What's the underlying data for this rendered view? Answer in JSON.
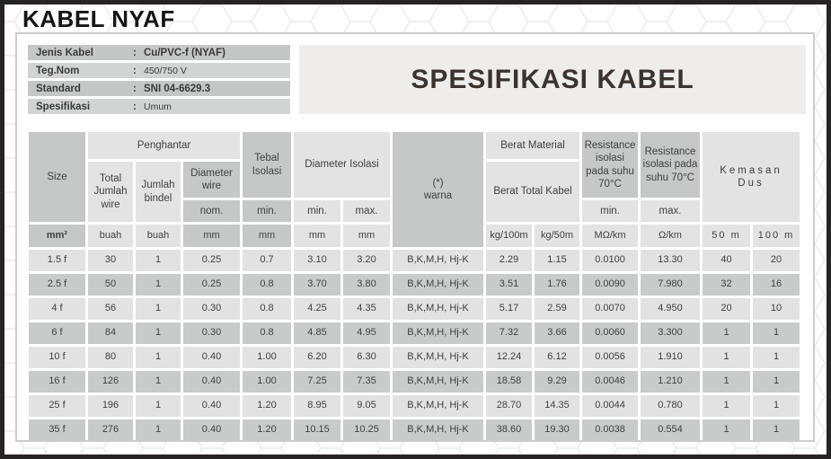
{
  "page_title": "KABEL NYAF",
  "info_panel": {
    "rows": [
      {
        "label": "Jenis Kabel",
        "separator": ":",
        "value": "Cu/PVC-f (NYAF)"
      },
      {
        "label": "Teg.Nom",
        "separator": ":",
        "value": "450/750 V"
      },
      {
        "label": "Standard",
        "separator": ":",
        "value": "SNI 04-6629.3"
      },
      {
        "label": "Spesifikasi",
        "separator": ":",
        "value": "Umum"
      }
    ]
  },
  "banner": {
    "title": "SPESIFIKASI KABEL"
  },
  "spec_table": {
    "headers": {
      "size": "Size",
      "penghantar": "Penghantar",
      "total_jumlah_wire": "Total Jumlah wire",
      "jumlah_bindel": "Jumlah bindel",
      "diameter_wire": "Diameter wire",
      "nom": "nom.",
      "tebal_isolasi": "Tebal Isolasi",
      "tebal_min": "min.",
      "diameter_isolasi": "Diameter Isolasi",
      "diameter_min": "min.",
      "diameter_max": "max.",
      "warna_mark": "(*)",
      "warna": "warna",
      "berat_material": "Berat Material",
      "berat_total_kabel": "Berat Total Kabel",
      "resistance_min_title": "Resistance isolasi pada suhu 70°C",
      "resistance_max_title": "Resistance isolasi pada suhu 70°C",
      "resistance_min": "min.",
      "resistance_max": "max.",
      "kemasan": "Kemasan",
      "dus": "Dus"
    },
    "units": [
      "mm²",
      "buah",
      "buah",
      "mm",
      "mm",
      "mm",
      "mm",
      "kg/100m",
      "kg/50m",
      "MΩ/km",
      "Ω/km",
      "50 m",
      "100 m"
    ],
    "rows": [
      [
        "1.5 f",
        "30",
        "1",
        "0.25",
        "0.7",
        "3.10",
        "3.20",
        "B,K,M,H, Hj-K",
        "2.29",
        "1.15",
        "0.0100",
        "13.30",
        "40",
        "20"
      ],
      [
        "2.5 f",
        "50",
        "1",
        "0.25",
        "0.8",
        "3.70",
        "3.80",
        "B,K,M,H, Hj-K",
        "3.51",
        "1.76",
        "0.0090",
        "7.980",
        "32",
        "16"
      ],
      [
        "4 f",
        "56",
        "1",
        "0.30",
        "0.8",
        "4.25",
        "4.35",
        "B,K,M,H, Hj-K",
        "5.17",
        "2.59",
        "0.0070",
        "4.950",
        "20",
        "10"
      ],
      [
        "6 f",
        "84",
        "1",
        "0.30",
        "0.8",
        "4.85",
        "4.95",
        "B,K,M,H, Hj-K",
        "7.32",
        "3.66",
        "0.0060",
        "3.300",
        "1",
        "1"
      ],
      [
        "10 f",
        "80",
        "1",
        "0.40",
        "1.00",
        "6.20",
        "6.30",
        "B,K,M,H, Hj-K",
        "12.24",
        "6.12",
        "0.0056",
        "1.910",
        "1",
        "1"
      ],
      [
        "16 f",
        "126",
        "1",
        "0.40",
        "1.00",
        "7.25",
        "7.35",
        "B,K,M,H, Hj-K",
        "18.58",
        "9.29",
        "0.0046",
        "1.210",
        "1",
        "1"
      ],
      [
        "25 f",
        "196",
        "1",
        "0.40",
        "1.20",
        "8.95",
        "9.05",
        "B,K,M,H, Hj-K",
        "28.70",
        "14.35",
        "0.0044",
        "0.780",
        "1",
        "1"
      ],
      [
        "35 f",
        "276",
        "1",
        "0.40",
        "1.20",
        "10.15",
        "10.25",
        "B,K,M,H, Hj-K",
        "38.60",
        "19.30",
        "0.0038",
        "0.554",
        "1",
        "1"
      ]
    ]
  },
  "colors": {
    "cell_light": "#e3e3e3",
    "cell_dark": "#c6c8c8",
    "row_light": "#e2e2e2",
    "row_dark": "#c9cbcb",
    "outer_border": "#272324",
    "banner_bg": "#eeedec"
  }
}
